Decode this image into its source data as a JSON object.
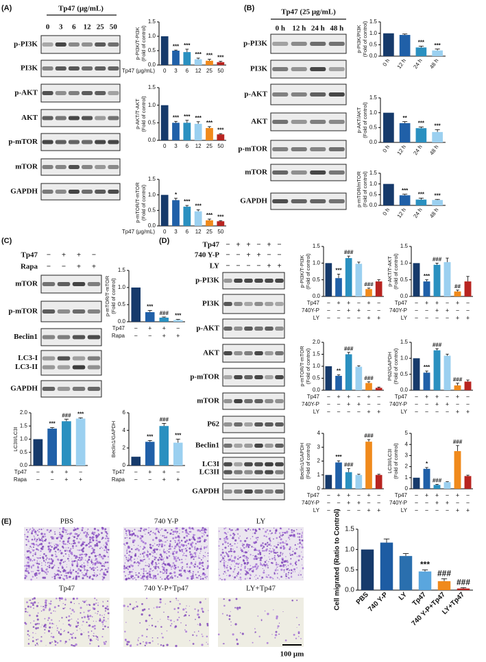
{
  "panel_labels": [
    "(A)",
    "(B)",
    "(C)",
    "(D)",
    "(E)"
  ],
  "blots": [
    {
      "header": "Tp47 (μg/mL)",
      "lanes": [
        "0",
        "3",
        "6",
        "12",
        "25",
        "50"
      ],
      "rows": [
        "p-PI3K",
        "PI3K",
        "p-AKT",
        "AKT",
        "p-mTOR",
        "mTOR",
        "GAPDH"
      ]
    },
    {
      "header": "Tp47 (25 μg/mL)",
      "lanes": [
        "0 h",
        "12 h",
        "24 h",
        "48 h"
      ],
      "rows": [
        "p-PI3K",
        "PI3K",
        "p-AKT",
        "AKT",
        "p-mTOR",
        "mTOR",
        "GAPDH"
      ]
    },
    {
      "conditions": [
        {
          "name": "Tp47",
          "marks": [
            "−",
            "+",
            "+",
            "−"
          ]
        },
        {
          "name": "Rapa",
          "marks": [
            "−",
            "−",
            "+",
            "+"
          ]
        }
      ],
      "rows": [
        "mTOR",
        "p-mTOR",
        "Beclin1",
        [
          "LC3-I",
          "LC3-II"
        ],
        "GAPDH"
      ]
    },
    {
      "conditions": [
        {
          "name": "Tp47",
          "marks": [
            "−",
            "+",
            "+",
            "−",
            "+",
            "−"
          ]
        },
        {
          "name": "740 Y-P",
          "marks": [
            "−",
            "−",
            "+",
            "+",
            "−",
            "−"
          ]
        },
        {
          "name": "LY",
          "marks": [
            "−",
            "−",
            "−",
            "−",
            "+",
            "+"
          ]
        }
      ],
      "rows": [
        "p-PI3K",
        "PI3K",
        "p-AKT",
        "AKT",
        "p-mTOR",
        "mTOR",
        "P62",
        "Beclin1",
        [
          "LC3I",
          "LC3II"
        ],
        "GAPDH"
      ]
    }
  ],
  "micrographs": {
    "labels": [
      "PBS",
      "740 Y-P",
      "LY",
      "Tp47",
      "740 Y-P+Tp47",
      "LY+Tp47"
    ],
    "scale": "100 μm"
  },
  "chart_data": [
    {
      "type": "bar",
      "ylabel": [
        "p-PI3K/T-PI3K",
        "(Fold of control)"
      ],
      "xlabel": "Tp47 (μg/mL)",
      "categories": [
        "0",
        "3",
        "6",
        "12",
        "25",
        "50"
      ],
      "values": [
        1,
        0.5,
        0.45,
        0.2,
        0.15,
        0.1
      ],
      "errors": [
        0,
        0.02,
        0.1,
        0.04,
        0.05,
        0.03
      ],
      "annotations": [
        null,
        "***",
        "***",
        "***",
        "***",
        "***"
      ],
      "colors": [
        "#163a6b",
        "#2060a8",
        "#2a90c0",
        "#9bd0f0",
        "#f08a1c",
        "#b82420"
      ],
      "ylim": [
        0,
        1.5
      ],
      "yticks": [
        {
          "value": 0,
          "label": "0.0"
        },
        0.5,
        {
          "value": 1,
          "label": "1.0"
        },
        1.5
      ]
    },
    {
      "type": "bar",
      "ylabel": [
        "p-AKT/T-AKT",
        "(Fold of control)"
      ],
      "categories": [
        "0",
        "3",
        "6",
        "12",
        "25",
        "50"
      ],
      "values": [
        1,
        0.5,
        0.5,
        0.47,
        0.35,
        0.17
      ],
      "errors": [
        0,
        0.04,
        0.07,
        0.06,
        0.04,
        0.02
      ],
      "annotations": [
        null,
        "***",
        "***",
        "***",
        "***",
        "***"
      ],
      "colors": [
        "#163a6b",
        "#2060a8",
        "#2a90c0",
        "#9bd0f0",
        "#f08a1c",
        "#b82420"
      ],
      "ylim": [
        0,
        1.5
      ],
      "yticks": [
        {
          "value": 0,
          "label": "0.0"
        },
        0.5,
        {
          "value": 1,
          "label": "1.0"
        },
        1.5
      ]
    },
    {
      "type": "bar",
      "ylabel": [
        "p-mTOR/T-mTOR",
        "(Fold of control)"
      ],
      "xlabel": "Tp47 (μg/mL)",
      "categories": [
        "0",
        "3",
        "6",
        "12",
        "25",
        "50"
      ],
      "values": [
        1,
        0.83,
        0.62,
        0.47,
        0.18,
        0.15
      ],
      "errors": [
        0,
        0.06,
        0.04,
        0.05,
        0.04,
        0.02
      ],
      "annotations": [
        null,
        "*",
        "***",
        "***",
        "***",
        "***"
      ],
      "colors": [
        "#163a6b",
        "#2060a8",
        "#2a90c0",
        "#9bd0f0",
        "#f08a1c",
        "#b82420"
      ],
      "ylim": [
        0,
        1.5
      ],
      "yticks": [
        {
          "value": 0,
          "label": "0.0"
        },
        0.5,
        {
          "value": 1,
          "label": "1.0"
        },
        1.5
      ]
    },
    {
      "type": "bar",
      "ylabel": [
        "p-PI3K/PI3K",
        "(Fold of control)"
      ],
      "categories": [
        "0 h",
        "12 h",
        "24 h",
        "48 h"
      ],
      "values": [
        1,
        0.93,
        0.38,
        0.25
      ],
      "errors": [
        0,
        0.04,
        0.06,
        0.06
      ],
      "annotations": [
        null,
        null,
        "***",
        "***"
      ],
      "colors": [
        "#163a6b",
        "#2060a8",
        "#2a90c0",
        "#9bd0f0"
      ],
      "ylim": [
        0,
        1.5
      ],
      "yticks": [
        {
          "value": 0,
          "label": "0.0"
        },
        0.5,
        {
          "value": 1,
          "label": "1.0"
        },
        1.5
      ]
    },
    {
      "type": "bar",
      "ylabel": [
        "p-AKT/AKT",
        "(Fold of control)"
      ],
      "categories": [
        "0 h",
        "12 h",
        "24 h",
        "48 h"
      ],
      "values": [
        1,
        0.65,
        0.48,
        0.35
      ],
      "errors": [
        0,
        0.05,
        0.04,
        0.08
      ],
      "annotations": [
        null,
        "**",
        "***",
        "***"
      ],
      "colors": [
        "#163a6b",
        "#2060a8",
        "#2a90c0",
        "#9bd0f0"
      ],
      "ylim": [
        0,
        1.5
      ],
      "yticks": [
        {
          "value": 0,
          "label": "0.0"
        },
        0.5,
        {
          "value": 1,
          "label": "1.0"
        },
        1.5
      ]
    },
    {
      "type": "bar",
      "ylabel": [
        "p-mTOR/mTOR",
        "(Fold of control)"
      ],
      "categories": [
        "0 h",
        "12 h",
        "24 h",
        "48 h"
      ],
      "values": [
        1,
        0.47,
        0.27,
        0.25
      ],
      "errors": [
        0,
        0.05,
        0.07,
        0.03
      ],
      "annotations": [
        null,
        "***",
        "***",
        "***"
      ],
      "colors": [
        "#163a6b",
        "#2060a8",
        "#2a90c0",
        "#9bd0f0"
      ],
      "ylim": [
        0,
        1.5
      ],
      "yticks": [
        {
          "value": 0,
          "label": "0.0"
        },
        0.5,
        {
          "value": 1,
          "label": "1.0"
        },
        1.5
      ]
    },
    {
      "type": "bar",
      "ylabel": [
        "p-mTOR/T-mTOR",
        "(Fold of control)"
      ],
      "conditions": [
        {
          "name": "Tp47",
          "marks": [
            "−",
            "+",
            "+",
            "−"
          ]
        },
        {
          "name": "Rapa",
          "marks": [
            "−",
            "−",
            "+",
            "+"
          ]
        }
      ],
      "values": [
        1,
        0.28,
        0.12,
        0.05
      ],
      "errors": [
        0,
        0.05,
        0.02,
        0.02
      ],
      "annotations": [
        null,
        "***",
        "###",
        "***"
      ],
      "colors": [
        "#163a6b",
        "#2060a8",
        "#2a90c0",
        "#9bd0f0"
      ],
      "ylim": [
        0,
        1.5
      ],
      "yticks": [
        {
          "value": 0,
          "label": "0.0"
        },
        0.5,
        {
          "value": 1,
          "label": "1.0"
        },
        1.5
      ]
    },
    {
      "type": "bar",
      "ylabel": [
        "LC3II/LC3I"
      ],
      "conditions": [
        {
          "name": "Tp47",
          "marks": [
            "−",
            "+",
            "+",
            "−"
          ]
        },
        {
          "name": "Rapa",
          "marks": [
            "−",
            "−",
            "+",
            "+"
          ]
        }
      ],
      "values": [
        1,
        1.4,
        1.68,
        1.78
      ],
      "errors": [
        0,
        0.04,
        0.08,
        0.03
      ],
      "annotations": [
        null,
        "***",
        "###",
        "***"
      ],
      "colors": [
        "#163a6b",
        "#2060a8",
        "#2a90c0",
        "#9bd0f0"
      ],
      "ylim": [
        0,
        2
      ],
      "yticks": [
        {
          "value": 0,
          "label": "0.0"
        },
        0.5,
        {
          "value": 1,
          "label": "1.0"
        },
        1.5,
        {
          "value": 2,
          "label": "2.0"
        }
      ]
    },
    {
      "type": "bar",
      "ylabel": [
        "Beclin1/GAPDH"
      ],
      "conditions": [
        {
          "name": "Tp47",
          "marks": [
            "−",
            "+",
            "+",
            "−"
          ]
        },
        {
          "name": "Rapa",
          "marks": [
            "−",
            "−",
            "+",
            "+"
          ]
        }
      ],
      "values": [
        1,
        2.7,
        4.5,
        2.6
      ],
      "errors": [
        0,
        0.15,
        0.3,
        0.4
      ],
      "annotations": [
        null,
        "***",
        "###",
        "***"
      ],
      "colors": [
        "#163a6b",
        "#2060a8",
        "#2a90c0",
        "#9bd0f0"
      ],
      "ylim": [
        0,
        6
      ],
      "yticks": [
        0,
        2,
        4,
        6
      ]
    },
    {
      "type": "bar",
      "ylabel": [
        "p-PI3K/T-PI3K",
        "(Fold of control)"
      ],
      "conditions": [
        {
          "name": "Tp47",
          "marks": [
            "−",
            "+",
            "+",
            "−",
            "+",
            "−"
          ]
        },
        {
          "name": "740Y-P",
          "marks": [
            "−",
            "−",
            "+",
            "+",
            "−",
            "−"
          ]
        },
        {
          "name": "LY",
          "marks": [
            "−",
            "−",
            "−",
            "−",
            "+",
            "+"
          ]
        }
      ],
      "values": [
        1,
        0.55,
        1.15,
        0.98,
        0.22,
        0.45
      ],
      "errors": [
        0,
        0.12,
        0.06,
        0.05,
        0.03,
        0.05
      ],
      "annotations": [
        null,
        "***",
        "###",
        null,
        "###",
        null
      ],
      "colors": [
        "#163a6b",
        "#2060a8",
        "#2a90c0",
        "#9bd0f0",
        "#f08a1c",
        "#b82420"
      ],
      "ylim": [
        0,
        1.5
      ],
      "yticks": [
        {
          "value": 0,
          "label": "0.0"
        },
        0.5,
        {
          "value": 1,
          "label": "1.0"
        },
        1.5
      ]
    },
    {
      "type": "bar",
      "ylabel": [
        "p-AKT/T-AKT",
        "(Fold of control)"
      ],
      "conditions": [
        {
          "name": "Tp47",
          "marks": [
            "−",
            "+",
            "+",
            "−",
            "+",
            "−"
          ]
        },
        {
          "name": "740Y-P",
          "marks": [
            "−",
            "−",
            "+",
            "+",
            "−",
            "−"
          ]
        },
        {
          "name": "LY",
          "marks": [
            "−",
            "−",
            "−",
            "−",
            "+",
            "+"
          ]
        }
      ],
      "values": [
        1,
        0.45,
        0.95,
        1.03,
        0.15,
        0.45
      ],
      "errors": [
        0,
        0.05,
        0.05,
        0.12,
        0.04,
        0.15
      ],
      "annotations": [
        null,
        "***",
        "###",
        null,
        "##",
        null
      ],
      "colors": [
        "#163a6b",
        "#2060a8",
        "#2a90c0",
        "#9bd0f0",
        "#f08a1c",
        "#b82420"
      ],
      "ylim": [
        0,
        1.5
      ],
      "yticks": [
        {
          "value": 0,
          "label": "0.0"
        },
        0.5,
        {
          "value": 1,
          "label": "1.0"
        },
        1.5
      ]
    },
    {
      "type": "bar",
      "ylabel": [
        "p-mTOR/T-mTOR",
        "(Fold of control)"
      ],
      "conditions": [
        {
          "name": "Tp47",
          "marks": [
            "−",
            "+",
            "+",
            "−",
            "+",
            "−"
          ]
        },
        {
          "name": "740Y-P",
          "marks": [
            "−",
            "−",
            "+",
            "+",
            "−",
            "−"
          ]
        },
        {
          "name": "LY",
          "marks": [
            "−",
            "−",
            "−",
            "−",
            "+",
            "+"
          ]
        }
      ],
      "values": [
        1,
        0.6,
        1.5,
        0.98,
        0.3,
        0.1
      ],
      "errors": [
        0,
        0.04,
        0.08,
        0.04,
        0.05,
        0.03
      ],
      "annotations": [
        null,
        "**",
        "###",
        null,
        "###",
        null
      ],
      "colors": [
        "#163a6b",
        "#2060a8",
        "#2a90c0",
        "#9bd0f0",
        "#f08a1c",
        "#b82420"
      ],
      "ylim": [
        0,
        2
      ],
      "yticks": [
        {
          "value": 0,
          "label": "0.0"
        },
        0.5,
        {
          "value": 1,
          "label": "1.0"
        },
        1.5,
        {
          "value": 2,
          "label": "2.0"
        }
      ]
    },
    {
      "type": "bar",
      "ylabel": [
        "P62/GAPDH",
        "(Fold of control)"
      ],
      "conditions": [
        {
          "name": "Tp47",
          "marks": [
            "−",
            "+",
            "+",
            "−",
            "+",
            "−"
          ]
        },
        {
          "name": "740Y-P",
          "marks": [
            "−",
            "−",
            "+",
            "+",
            "−",
            "−"
          ]
        },
        {
          "name": "LY",
          "marks": [
            "−",
            "−",
            "−",
            "−",
            "+",
            "+"
          ]
        }
      ],
      "values": [
        1,
        0.55,
        1.25,
        1.08,
        0.15,
        0.27
      ],
      "errors": [
        0,
        0.05,
        0.05,
        0.05,
        0.07,
        0.05
      ],
      "annotations": [
        null,
        "***",
        "###",
        null,
        "###",
        null
      ],
      "colors": [
        "#163a6b",
        "#2060a8",
        "#2a90c0",
        "#9bd0f0",
        "#f08a1c",
        "#b82420"
      ],
      "ylim": [
        0,
        1.5
      ],
      "yticks": [
        {
          "value": 0,
          "label": "0.0"
        },
        0.5,
        {
          "value": 1,
          "label": "1.0"
        },
        1.5
      ]
    },
    {
      "type": "bar",
      "ylabel": [
        "Beclin1/GAPDH",
        "(Fold of control)"
      ],
      "conditions": [
        {
          "name": "Tp47",
          "marks": [
            "−",
            "+",
            "+",
            "−",
            "+",
            "−"
          ]
        },
        {
          "name": "740Y-P",
          "marks": [
            "−",
            "−",
            "+",
            "+",
            "−",
            "−"
          ]
        },
        {
          "name": "LY",
          "marks": [
            "−",
            "−",
            "−",
            "−",
            "+",
            "+"
          ]
        }
      ],
      "values": [
        1,
        1.9,
        1.2,
        1.0,
        3.4,
        1.0
      ],
      "errors": [
        0,
        0.12,
        0.25,
        0.05,
        0.15,
        0.05
      ],
      "annotations": [
        null,
        "***",
        "###",
        null,
        "###",
        null
      ],
      "colors": [
        "#163a6b",
        "#2060a8",
        "#2a90c0",
        "#9bd0f0",
        "#f08a1c",
        "#b82420"
      ],
      "ylim": [
        0,
        4
      ],
      "yticks": [
        0,
        1,
        2,
        3,
        4
      ]
    },
    {
      "type": "bar",
      "ylabel": [
        "LC3II/LC3I",
        "(Fold of control)"
      ],
      "conditions": [
        {
          "name": "Tp47",
          "marks": [
            "−",
            "+",
            "+",
            "−",
            "+",
            "−"
          ]
        },
        {
          "name": "740Y-P",
          "marks": [
            "−",
            "−",
            "+",
            "+",
            "−",
            "−"
          ]
        },
        {
          "name": "LY",
          "marks": [
            "−",
            "−",
            "−",
            "−",
            "+",
            "+"
          ]
        }
      ],
      "values": [
        1,
        1.8,
        0.35,
        0.6,
        3.4,
        1.15
      ],
      "errors": [
        0,
        0.12,
        0.05,
        0.04,
        0.5,
        0.08
      ],
      "annotations": [
        null,
        "*",
        "###",
        null,
        "###",
        null
      ],
      "colors": [
        "#163a6b",
        "#2060a8",
        "#2a90c0",
        "#9bd0f0",
        "#f08a1c",
        "#b82420"
      ],
      "ylim": [
        0,
        5
      ],
      "yticks": [
        0,
        1,
        2,
        3,
        4,
        5
      ]
    },
    {
      "type": "bar",
      "ylabel": [
        "Cell migrated (Ratio to Control)"
      ],
      "categories": [
        "PBS",
        "740 Y-P",
        "LY",
        "Tp47",
        "740 Y-P+Tp47",
        "LY+Tp47"
      ],
      "values": [
        1.0,
        1.17,
        0.84,
        0.46,
        0.22,
        0.04
      ],
      "errors": [
        0,
        0.09,
        0.06,
        0.04,
        0.06,
        0.02
      ],
      "annotations": [
        null,
        null,
        null,
        "***",
        "###",
        "###"
      ],
      "colors": [
        "#163a6b",
        "#1d5ca3",
        "#2a6fae",
        "#5aa6de",
        "#f08a1c",
        "#b82420"
      ],
      "ylim": [
        0,
        1.5
      ],
      "yticks": [
        {
          "value": 0,
          "label": "0.0"
        },
        0.5,
        {
          "value": 1,
          "label": "1.0"
        },
        1.5
      ]
    }
  ]
}
